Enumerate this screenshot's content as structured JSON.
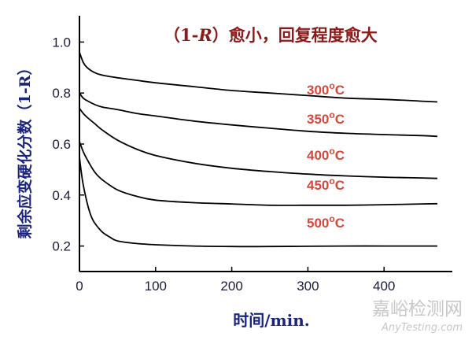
{
  "chart_data": {
    "type": "line",
    "title": "",
    "annotation": {
      "open": "（",
      "expr_a": "1-",
      "expr_b": "R",
      "text": "）愈小，回复程度愈大"
    },
    "xlabel": "时间/min.",
    "ylabel": "剩余应变硬化分数（1-R）",
    "xlim": [
      0,
      500
    ],
    "ylim": [
      0.1,
      1.1
    ],
    "x_ticks": [
      0,
      100,
      200,
      300,
      400
    ],
    "y_ticks": [
      0.2,
      0.4,
      0.6,
      0.8,
      1.0
    ],
    "y_tick_labels": [
      "0.2",
      "0.4",
      "0.6",
      "0.8",
      "1.0"
    ],
    "grid": false,
    "series": [
      {
        "name": "300°C",
        "label": {
          "num": "300",
          "sup": "o",
          "unit": "C"
        },
        "x": [
          0,
          5,
          10,
          20,
          30,
          50,
          75,
          100,
          150,
          200,
          250,
          300,
          350,
          400,
          450,
          470
        ],
        "y": [
          0.96,
          0.92,
          0.9,
          0.88,
          0.87,
          0.86,
          0.85,
          0.84,
          0.825,
          0.81,
          0.8,
          0.79,
          0.78,
          0.775,
          0.768,
          0.765
        ]
      },
      {
        "name": "350°C",
        "label": {
          "num": "350",
          "sup": "o",
          "unit": "C"
        },
        "x": [
          0,
          5,
          10,
          20,
          30,
          50,
          75,
          100,
          150,
          200,
          250,
          300,
          350,
          400,
          450,
          470
        ],
        "y": [
          0.8,
          0.78,
          0.77,
          0.755,
          0.745,
          0.735,
          0.72,
          0.71,
          0.69,
          0.675,
          0.662,
          0.65,
          0.642,
          0.637,
          0.633,
          0.63
        ]
      },
      {
        "name": "400°C",
        "label": {
          "num": "400",
          "sup": "o",
          "unit": "C"
        },
        "x": [
          0,
          5,
          10,
          20,
          30,
          50,
          75,
          100,
          150,
          200,
          250,
          300,
          350,
          400,
          450,
          470
        ],
        "y": [
          0.74,
          0.72,
          0.705,
          0.68,
          0.655,
          0.615,
          0.58,
          0.555,
          0.525,
          0.505,
          0.492,
          0.482,
          0.475,
          0.47,
          0.467,
          0.465
        ]
      },
      {
        "name": "450°C",
        "label": {
          "num": "450",
          "sup": "o",
          "unit": "C"
        },
        "x": [
          0,
          5,
          10,
          20,
          30,
          50,
          75,
          100,
          150,
          200,
          250,
          300,
          350,
          400,
          450,
          470
        ],
        "y": [
          0.61,
          0.57,
          0.54,
          0.49,
          0.46,
          0.42,
          0.395,
          0.38,
          0.37,
          0.365,
          0.36,
          0.36,
          0.36,
          0.362,
          0.365,
          0.366
        ]
      },
      {
        "name": "500°C",
        "label": {
          "num": "500",
          "sup": "o",
          "unit": "C"
        },
        "x": [
          0,
          2,
          5,
          10,
          15,
          20,
          30,
          40,
          50,
          75,
          100,
          150,
          200,
          250,
          300,
          350,
          400,
          450,
          470
        ],
        "y": [
          0.55,
          0.5,
          0.44,
          0.37,
          0.32,
          0.29,
          0.255,
          0.235,
          0.22,
          0.21,
          0.205,
          0.2,
          0.198,
          0.198,
          0.199,
          0.2,
          0.2,
          0.2,
          0.2
        ]
      }
    ]
  },
  "watermark": {
    "cn": "嘉峪检测网",
    "en": "AnyTesting.com"
  },
  "colors": {
    "axis": "#000000",
    "curve": "#000000",
    "label_text": "#d9463a",
    "annotation": "#8b1a1a",
    "axis_title": "#1a237e",
    "watermark": "#c7c7c7"
  }
}
